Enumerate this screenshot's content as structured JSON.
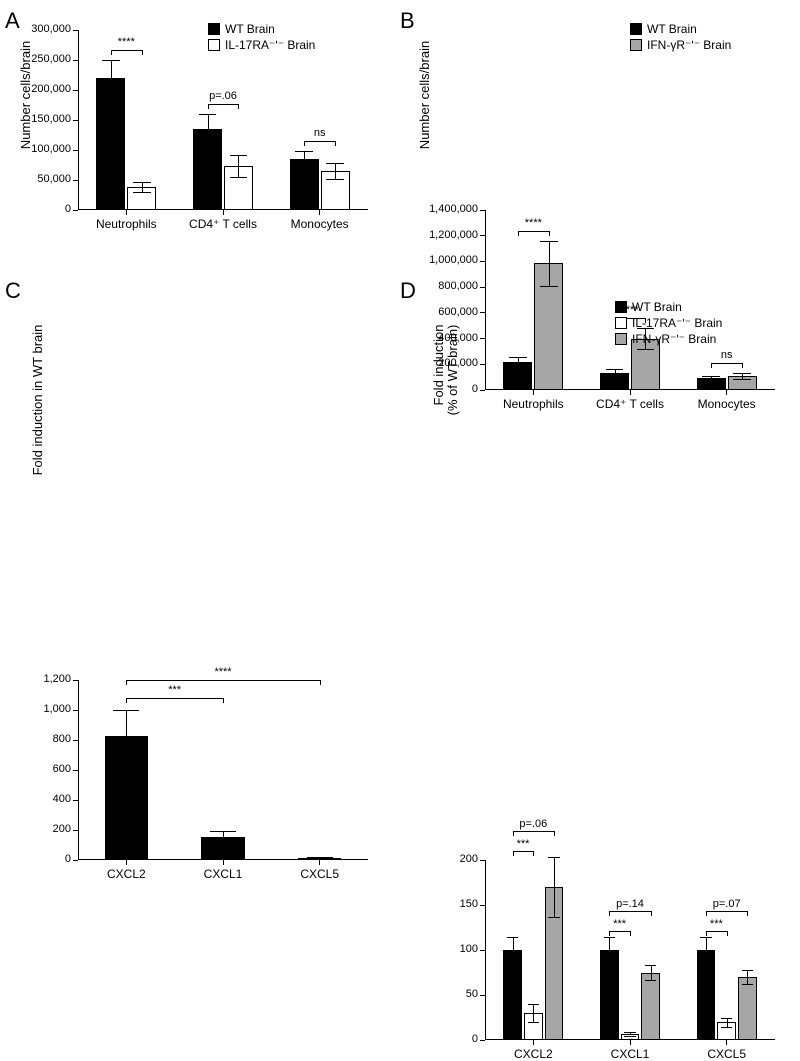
{
  "panels": {
    "A": {
      "label": "A",
      "type": "bar",
      "y_title": "Number cells/brain",
      "ylim": [
        0,
        300000
      ],
      "ytick_step": 50000,
      "ytick_labels": [
        "0",
        "50,000",
        "100,000",
        "150,000",
        "200,000",
        "250,000",
        "300,000"
      ],
      "categories": [
        "Neutrophils",
        "CD4⁺ T cells",
        "Monocytes"
      ],
      "series": [
        {
          "name": "WT Brain",
          "color": "#000000",
          "values": [
            220000,
            135000,
            85000
          ],
          "err": [
            30000,
            25000,
            13000
          ]
        },
        {
          "name": "IL-17RA⁻ʹ⁻ Brain",
          "color": "#ffffff",
          "values": [
            38000,
            73000,
            65000
          ],
          "err": [
            8000,
            18000,
            13000
          ]
        }
      ],
      "annotations": [
        {
          "cat": 0,
          "text": "****"
        },
        {
          "cat": 1,
          "text": "p=.06"
        },
        {
          "cat": 2,
          "text": "ns"
        }
      ],
      "label_fontsize": 22,
      "tick_fontsize": 11,
      "axis_title_fontsize": 13,
      "legend_fontsize": 12,
      "bar_border": "#000000",
      "background": "#ffffff"
    },
    "B": {
      "label": "B",
      "type": "bar",
      "y_title": "Number cells/brain",
      "ylim": [
        0,
        1400000
      ],
      "ytick_step": 200000,
      "ytick_labels": [
        "0",
        "200,000",
        "400,000",
        "600,000",
        "800,000",
        "1,000,000",
        "1,200,000",
        "1,400,000"
      ],
      "categories": [
        "Neutrophils",
        "CD4⁺ T cells",
        "Monocytes"
      ],
      "series": [
        {
          "name": "WT Brain",
          "color": "#000000",
          "values": [
            220000,
            135000,
            90000
          ],
          "err": [
            40000,
            25000,
            20000
          ]
        },
        {
          "name": "IFN-γR⁻ʹ⁻ Brain",
          "color": "#a6a6a6",
          "values": [
            985000,
            400000,
            110000
          ],
          "err": [
            175000,
            80000,
            25000
          ]
        }
      ],
      "annotations": [
        {
          "cat": 0,
          "text": "****"
        },
        {
          "cat": 1,
          "text": "****"
        },
        {
          "cat": 2,
          "text": "ns"
        }
      ],
      "label_fontsize": 22,
      "tick_fontsize": 11,
      "axis_title_fontsize": 13,
      "legend_fontsize": 12,
      "bar_border": "#000000",
      "background": "#ffffff"
    },
    "C": {
      "label": "C",
      "type": "bar",
      "y_title": "Fold induction in WT brain",
      "ylim": [
        0,
        1200
      ],
      "ytick_step": 200,
      "ytick_labels": [
        "0",
        "200",
        "400",
        "600",
        "800",
        "1,000",
        "1,200"
      ],
      "categories": [
        "CXCL2",
        "CXCL1",
        "CXCL5"
      ],
      "series": [
        {
          "name": "WT",
          "color": "#000000",
          "values": [
            830,
            155,
            12
          ],
          "err": [
            170,
            40,
            5
          ]
        }
      ],
      "annotations": [
        {
          "span": [
            0,
            1
          ],
          "text": "***"
        },
        {
          "span": [
            0,
            2
          ],
          "text": "****"
        }
      ],
      "label_fontsize": 22,
      "tick_fontsize": 11,
      "axis_title_fontsize": 13,
      "bar_border": "#000000",
      "background": "#ffffff"
    },
    "D": {
      "label": "D",
      "type": "bar",
      "y_title_line1": "Fold induction",
      "y_title_line2": "(% of WT brain)",
      "ylim": [
        0,
        200
      ],
      "ytick_step": 50,
      "ytick_labels": [
        "0",
        "50",
        "100",
        "150",
        "200"
      ],
      "categories": [
        "CXCL2",
        "CXCL1",
        "CXCL5"
      ],
      "series": [
        {
          "name": "WT Brain",
          "color": "#000000",
          "values": [
            100,
            100,
            100
          ],
          "err": [
            14,
            14,
            14
          ]
        },
        {
          "name": "IL-17RA⁻ʹ⁻ Brain",
          "color": "#ffffff",
          "values": [
            30,
            7,
            20
          ],
          "err": [
            10,
            2,
            5
          ]
        },
        {
          "name": "IFN-γR⁻ʹ⁻ Brain",
          "color": "#a6a6a6",
          "values": [
            170,
            75,
            70
          ],
          "err": [
            33,
            8,
            8
          ]
        }
      ],
      "annotations_lower": [
        {
          "cat": 0,
          "text": "***"
        },
        {
          "cat": 1,
          "text": "***"
        },
        {
          "cat": 2,
          "text": "***"
        }
      ],
      "annotations_upper": [
        {
          "cat": 0,
          "text": "p=.06"
        },
        {
          "cat": 1,
          "text": "p=.14"
        },
        {
          "cat": 2,
          "text": "p=.07"
        }
      ],
      "label_fontsize": 22,
      "tick_fontsize": 11,
      "axis_title_fontsize": 13,
      "legend_fontsize": 12,
      "bar_border": "#000000",
      "background": "#ffffff"
    }
  }
}
